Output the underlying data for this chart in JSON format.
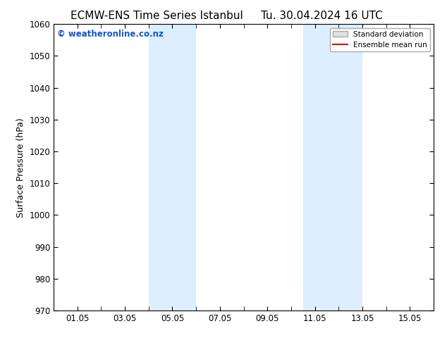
{
  "title_left": "ECMW-ENS Time Series Istanbul",
  "title_right": "Tu. 30.04.2024 16 UTC",
  "ylabel": "Surface Pressure (hPa)",
  "ylim": [
    970,
    1060
  ],
  "yticks": [
    970,
    980,
    990,
    1000,
    1010,
    1020,
    1030,
    1040,
    1050,
    1060
  ],
  "xtick_labels": [
    "01.05",
    "03.05",
    "05.05",
    "07.05",
    "09.05",
    "11.05",
    "13.05",
    "15.05"
  ],
  "xtick_positions": [
    1,
    3,
    5,
    7,
    9,
    11,
    13,
    15
  ],
  "xmin": 0,
  "xmax": 16,
  "shaded_regions": [
    {
      "xmin": 4.0,
      "xmax": 6.0
    },
    {
      "xmin": 10.5,
      "xmax": 13.0
    }
  ],
  "shade_color": "#ddeeff",
  "watermark_text": "© weatheronline.co.nz",
  "watermark_color": "#1155cc",
  "watermark_fontsize": 8.5,
  "legend_std_label": "Standard deviation",
  "legend_mean_label": "Ensemble mean run",
  "legend_std_facecolor": "#e0e0e0",
  "legend_std_edgecolor": "#aaaaaa",
  "legend_mean_color": "#dd0000",
  "background_color": "#ffffff",
  "title_fontsize": 11,
  "axis_label_fontsize": 9,
  "tick_fontsize": 8.5
}
